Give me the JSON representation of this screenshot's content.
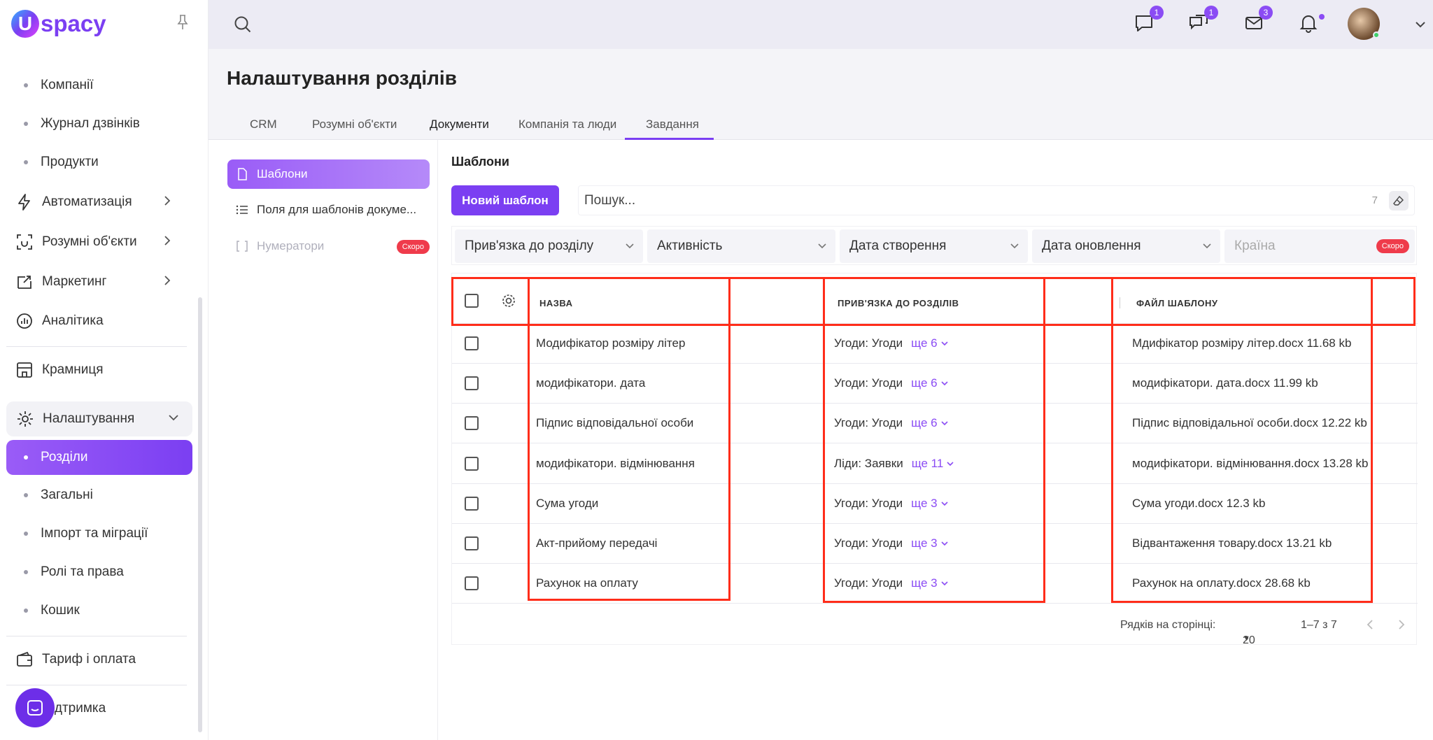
{
  "app": {
    "name": "spacy",
    "logo_letter": "U"
  },
  "topbar": {
    "badges": {
      "chat": "1",
      "comments": "1",
      "mail": "3"
    }
  },
  "sidebar": {
    "items": [
      {
        "label": "Компанії"
      },
      {
        "label": "Журнал дзвінків"
      },
      {
        "label": "Продукти"
      },
      {
        "label": "Автоматизація"
      },
      {
        "label": "Розумні об'єкти"
      },
      {
        "label": "Маркетинг"
      },
      {
        "label": "Аналітика"
      },
      {
        "label": "Крамниця"
      },
      {
        "label": "Налаштування"
      },
      {
        "label": "Розділи"
      },
      {
        "label": "Загальні"
      },
      {
        "label": "Імпорт та міграції"
      },
      {
        "label": "Ролі та права"
      },
      {
        "label": "Кошик"
      },
      {
        "label": "Тариф і оплата"
      },
      {
        "label": "Підтримка"
      }
    ]
  },
  "page": {
    "title": "Налаштування розділів"
  },
  "tabs": [
    {
      "label": "CRM"
    },
    {
      "label": "Розумні об'єкти"
    },
    {
      "label": "Документи"
    },
    {
      "label": "Компанія та люди"
    },
    {
      "label": "Завдання"
    }
  ],
  "subnav": {
    "items": [
      {
        "label": "Шаблони"
      },
      {
        "label": "Поля для шаблонів докуме..."
      },
      {
        "label": "Нумератори",
        "badge": "Скоро"
      }
    ]
  },
  "templates": {
    "title": "Шаблони",
    "new_button": "Новий шаблон",
    "search_placeholder": "Пошук...",
    "count": "7"
  },
  "filters": [
    {
      "label": "Прив'язка до розділу"
    },
    {
      "label": "Активність"
    },
    {
      "label": "Дата створення"
    },
    {
      "label": "Дата оновлення"
    },
    {
      "label": "Країна",
      "badge": "Скоро"
    }
  ],
  "table": {
    "headers": {
      "name": "НАЗВА",
      "binding": "ПРИВ'ЯЗКА ДО РОЗДІЛІВ",
      "file": "ФАЙЛ ШАБЛОНУ"
    },
    "rows": [
      {
        "name": "Модифікатор розміру літер",
        "binding": "Угоди: Угоди",
        "more": "ще 6",
        "file": "Мдифікатор розміру літер.docx 11.68 kb"
      },
      {
        "name": "модифікатори. дата",
        "binding": "Угоди: Угоди",
        "more": "ще 6",
        "file": "модифікатори. дата.docx 11.99 kb"
      },
      {
        "name": "Підпис відповідальної особи",
        "binding": "Угоди: Угоди",
        "more": "ще 6",
        "file": "Підпис відповідальної особи.docx 12.22 kb"
      },
      {
        "name": "модифікатори. відмінювання",
        "binding": "Ліди: Заявки",
        "more": "ще 11",
        "file": "модифікатори. відмінювання.docx 13.28 kb"
      },
      {
        "name": "Сума угоди",
        "binding": "Угоди: Угоди",
        "more": "ще 3",
        "file": "Сума угоди.docx 12.3 kb"
      },
      {
        "name": "Акт-прийому передачі",
        "binding": "Угоди: Угоди",
        "more": "ще 3",
        "file": "Відвантаження товару.docx 13.21 kb"
      },
      {
        "name": "Рахунок на оплату",
        "binding": "Угоди: Угоди",
        "more": "ще 3",
        "file": "Рахунок на оплату.docx 28.68 kb"
      }
    ],
    "footer": {
      "rows_label": "Рядків на сторінці:",
      "rows_value": "20",
      "range": "1–7 з 7"
    }
  },
  "colors": {
    "accent": "#7b3ff2",
    "highlight": "#ff2d1a",
    "soon": "#ef3b4b"
  }
}
